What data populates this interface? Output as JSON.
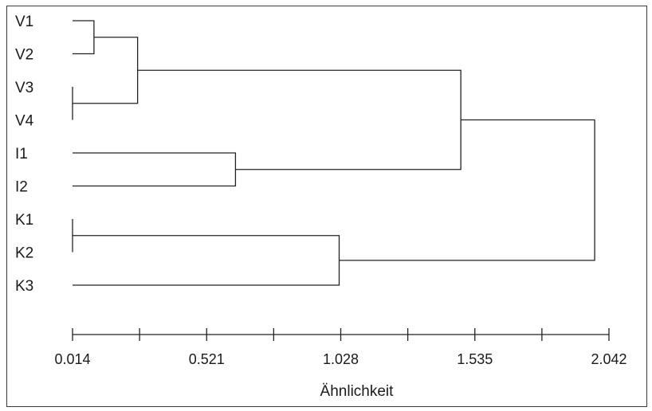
{
  "chart_data": {
    "type": "dendrogram",
    "title": "",
    "xlabel": "Ähnlichkeit",
    "ylabel": "",
    "leaves": [
      "V1",
      "V2",
      "V3",
      "V4",
      "I1",
      "I2",
      "K1",
      "K2",
      "K3"
    ],
    "xlim": [
      0.014,
      2.042
    ],
    "ticks": {
      "major": [
        "0.014",
        "0.521",
        "1.028",
        "1.535",
        "2.042"
      ],
      "minor": [
        0.2675,
        0.7745,
        1.2815,
        1.7885
      ]
    },
    "merges": [
      {
        "id": "n1",
        "a": "V1",
        "b": "V2",
        "height": 0.095
      },
      {
        "id": "n2",
        "a": "V3",
        "b": "V4",
        "height": 0.014
      },
      {
        "id": "n3",
        "a": "n1",
        "b": "n2",
        "height": 0.26
      },
      {
        "id": "n4",
        "a": "I1",
        "b": "I2",
        "height": 0.63
      },
      {
        "id": "n5",
        "a": "n3",
        "b": "n4",
        "height": 1.482
      },
      {
        "id": "n6",
        "a": "K1",
        "b": "K2",
        "height": 0.014
      },
      {
        "id": "n7",
        "a": "n6",
        "b": "K3",
        "height": 1.022
      },
      {
        "id": "n8",
        "a": "n5",
        "b": "n7",
        "height": 1.988
      }
    ],
    "grid": false,
    "legend": "none"
  }
}
